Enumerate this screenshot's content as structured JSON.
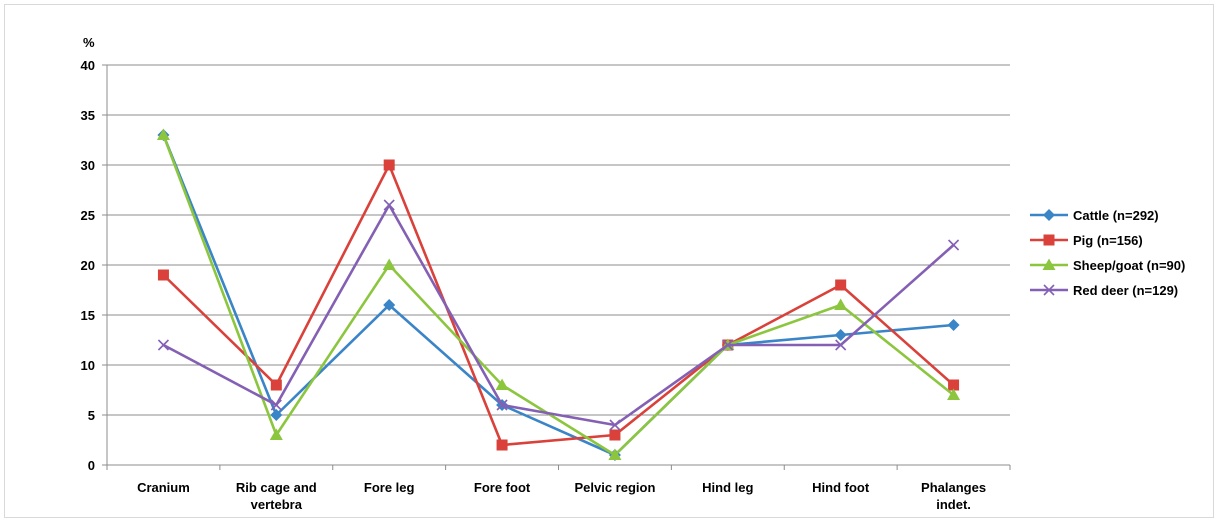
{
  "chart_data": {
    "type": "line",
    "ylabel": "%",
    "ylim": [
      0,
      40
    ],
    "yticks": [
      0,
      5,
      10,
      15,
      20,
      25,
      30,
      35,
      40
    ],
    "grid": true,
    "legend_position": "right",
    "categories": [
      [
        "Cranium"
      ],
      [
        "Rib cage and",
        "vertebra"
      ],
      [
        "Fore leg"
      ],
      [
        "Fore foot"
      ],
      [
        "Pelvic region"
      ],
      [
        "Hind leg"
      ],
      [
        "Hind foot"
      ],
      [
        "Phalanges",
        "indet."
      ]
    ],
    "series": [
      {
        "name": "Cattle (n=292)",
        "marker": "diamond",
        "color": "#3a84c8",
        "values": [
          33,
          5,
          16,
          6,
          1,
          12,
          13,
          14
        ]
      },
      {
        "name": "Pig (n=156)",
        "marker": "square",
        "color": "#d9413a",
        "values": [
          19,
          8,
          30,
          2,
          3,
          12,
          18,
          8
        ]
      },
      {
        "name": "Sheep/goat (n=90)",
        "marker": "triangle",
        "color": "#8cc63e",
        "values": [
          33,
          3,
          20,
          8,
          1,
          12,
          16,
          7
        ]
      },
      {
        "name": "Red deer (n=129)",
        "marker": "cross",
        "color": "#8460b4",
        "values": [
          12,
          6,
          26,
          6,
          4,
          12,
          12,
          22
        ]
      }
    ]
  }
}
